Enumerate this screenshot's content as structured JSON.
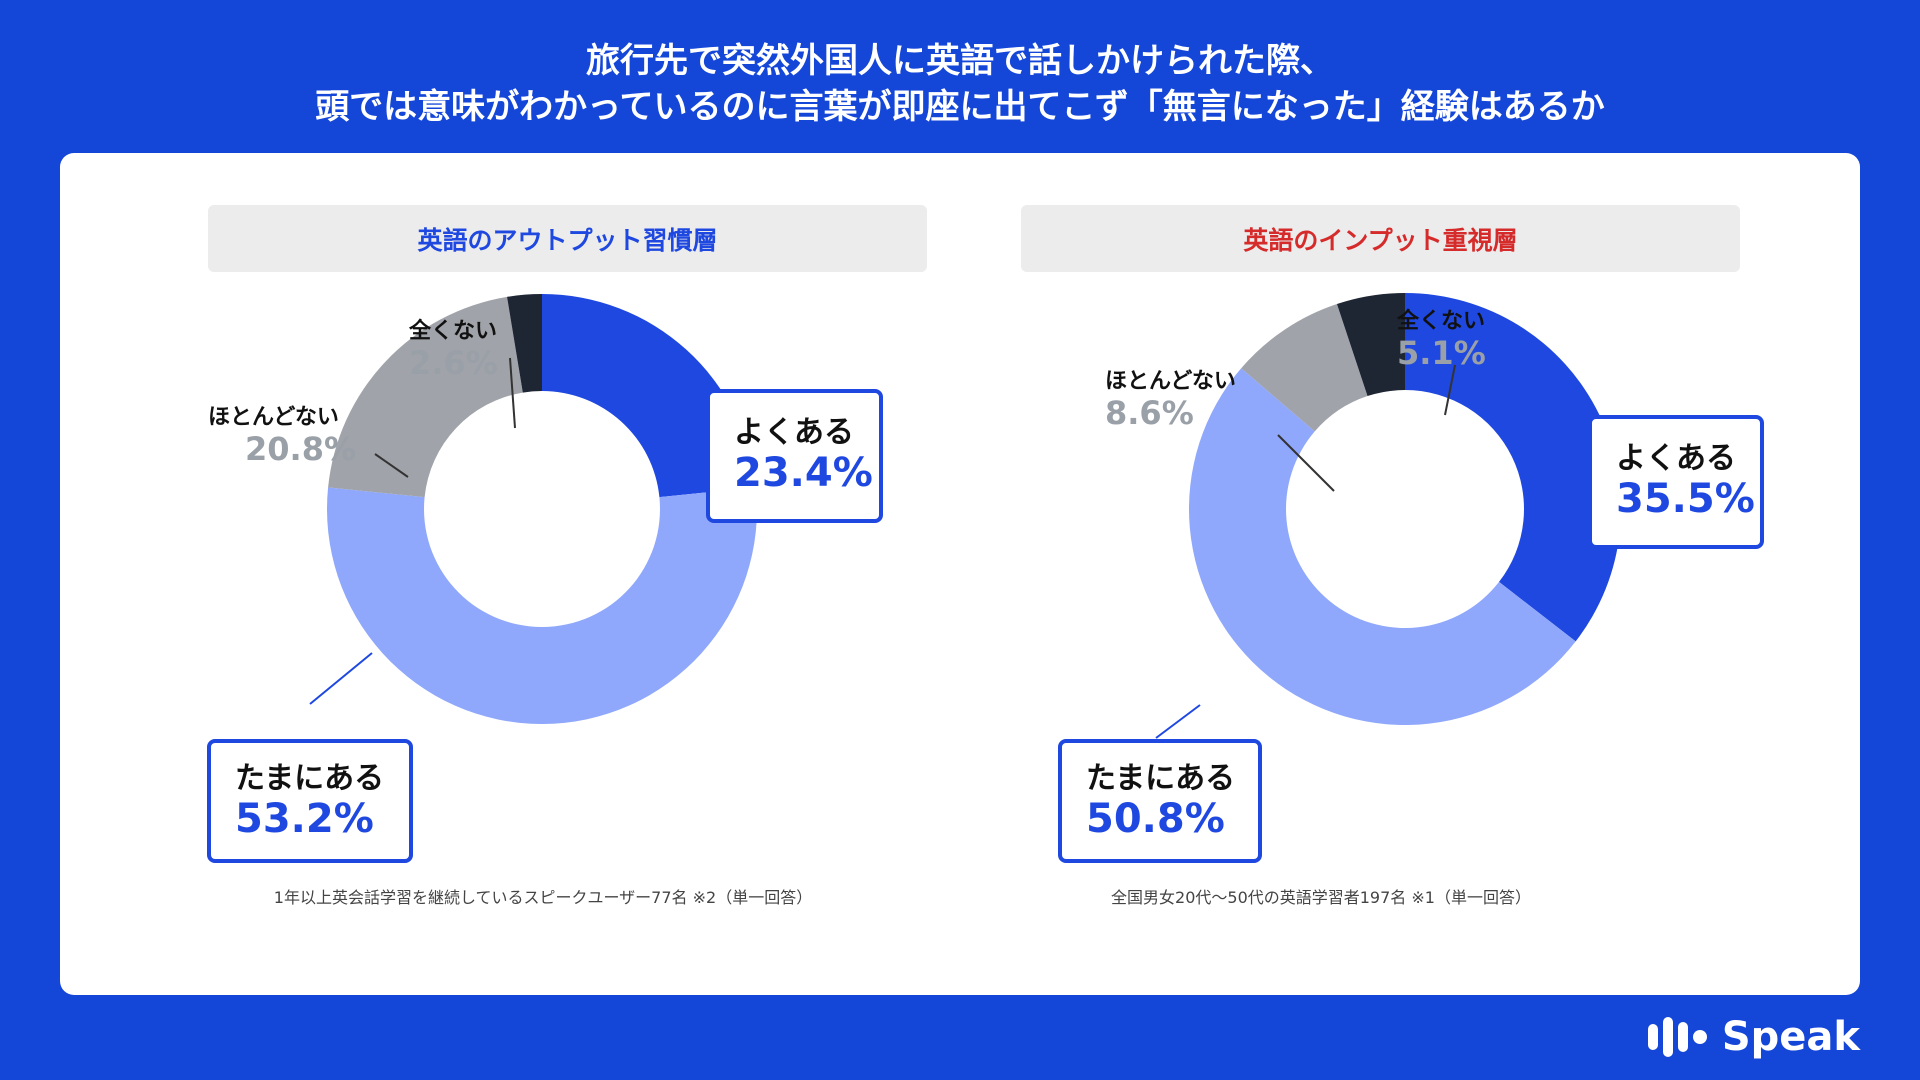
{
  "page": {
    "title_line1": "旅行先で突然外国人に英語で話しかけられた際、",
    "title_line2": "頭では意味がわかっているのに言葉が即座に出てこず「無言になった」経験はあるか",
    "brand": "Speak"
  },
  "colors": {
    "background": "#1446d8",
    "often": "#1f48e0",
    "sometimes": "#8fa8fb",
    "rarely": "#a0a3a9",
    "never": "#1e2533",
    "header_blue": "#1f48e0",
    "header_red": "#d62b2b"
  },
  "chart_data": [
    {
      "type": "pie",
      "donut": true,
      "title": "英語のアウトプット習慣層",
      "note": "1年以上英会話学習を継続しているスピークユーザー77名 ※2（単一回答）",
      "categories": [
        "よくある",
        "たまにある",
        "ほとんどない",
        "全くない"
      ],
      "values": [
        23.4,
        53.2,
        20.8,
        2.6
      ],
      "value_labels": [
        "23.4%",
        "53.2%",
        "20.8%",
        "2.6%"
      ]
    },
    {
      "type": "pie",
      "donut": true,
      "title": "英語のインプット重視層",
      "note": "全国男女20代〜50代の英語学習者197名 ※1（単一回答）",
      "categories": [
        "よくある",
        "たまにある",
        "ほとんどない",
        "全くない"
      ],
      "values": [
        35.5,
        50.8,
        8.6,
        5.1
      ],
      "value_labels": [
        "35.5%",
        "50.8%",
        "8.6%",
        "5.1%"
      ]
    }
  ]
}
